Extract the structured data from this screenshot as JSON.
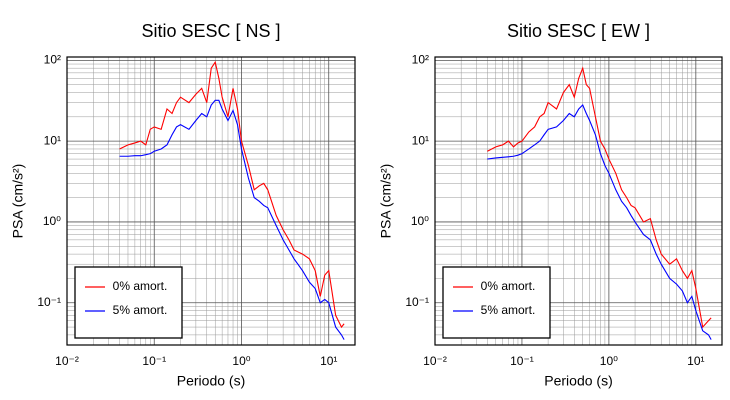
{
  "chart_data": [
    {
      "type": "line",
      "title": "Sitio SESC [ NS ]",
      "x_label": "Periodo (s)",
      "y_label": "PSA (cm/s²)",
      "xscale": "log",
      "yscale": "log",
      "grid": true,
      "legend": "lower left",
      "xlim": [
        0.01,
        20
      ],
      "ylim": [
        0.03,
        110
      ],
      "xticks": [
        {
          "value": 0.01,
          "label": "10⁻²"
        },
        {
          "value": 0.1,
          "label": "10⁻¹"
        },
        {
          "value": 1,
          "label": "10⁰"
        },
        {
          "value": 10,
          "label": "10¹"
        }
      ],
      "yticks": [
        {
          "value": 0.1,
          "label": "10⁻¹"
        },
        {
          "value": 1,
          "label": "10⁰"
        },
        {
          "value": 10,
          "label": "10¹"
        },
        {
          "value": 100,
          "label": "10²"
        }
      ],
      "x": [
        0.04,
        0.05,
        0.06,
        0.07,
        0.08,
        0.09,
        0.1,
        0.12,
        0.14,
        0.16,
        0.18,
        0.2,
        0.25,
        0.3,
        0.35,
        0.4,
        0.45,
        0.5,
        0.55,
        0.6,
        0.7,
        0.8,
        0.9,
        1.0,
        1.2,
        1.4,
        1.6,
        1.8,
        2.0,
        2.5,
        3.0,
        3.5,
        4.0,
        5.0,
        6.0,
        7.0,
        8.0,
        9.0,
        10,
        12,
        14,
        15
      ],
      "series": [
        {
          "name": "0% amort.",
          "color": "#ff0000",
          "values": [
            8,
            9,
            9.5,
            10,
            9,
            14,
            15,
            14,
            25,
            22,
            30,
            35,
            30,
            38,
            45,
            30,
            80,
            95,
            60,
            35,
            20,
            45,
            25,
            10,
            5,
            2.5,
            2.8,
            3,
            2.5,
            1.2,
            0.8,
            0.6,
            0.45,
            0.4,
            0.35,
            0.25,
            0.12,
            0.22,
            0.25,
            0.07,
            0.05,
            0.055
          ]
        },
        {
          "name": "5% amort.",
          "color": "#0000ff",
          "values": [
            6.5,
            6.5,
            6.6,
            6.6,
            6.8,
            7,
            7.5,
            8,
            9,
            12,
            15,
            16,
            14,
            18,
            22,
            20,
            28,
            32,
            32,
            25,
            18,
            24,
            16,
            8,
            3.5,
            2,
            1.8,
            1.6,
            1.5,
            0.9,
            0.6,
            0.45,
            0.35,
            0.25,
            0.18,
            0.15,
            0.1,
            0.11,
            0.1,
            0.05,
            0.04,
            0.035
          ]
        }
      ]
    },
    {
      "type": "line",
      "title": "Sitio SESC [ EW ]",
      "x_label": "Periodo (s)",
      "y_label": "PSA (cm/s²)",
      "xscale": "log",
      "yscale": "log",
      "grid": true,
      "legend": "lower left",
      "xlim": [
        0.01,
        20
      ],
      "ylim": [
        0.03,
        110
      ],
      "xticks": [
        {
          "value": 0.01,
          "label": "10⁻²"
        },
        {
          "value": 0.1,
          "label": "10⁻¹"
        },
        {
          "value": 1,
          "label": "10⁰"
        },
        {
          "value": 10,
          "label": "10¹"
        }
      ],
      "yticks": [
        {
          "value": 0.1,
          "label": "10⁻¹"
        },
        {
          "value": 1,
          "label": "10⁰"
        },
        {
          "value": 10,
          "label": "10¹"
        },
        {
          "value": 100,
          "label": "10²"
        }
      ],
      "x": [
        0.04,
        0.05,
        0.06,
        0.07,
        0.08,
        0.09,
        0.1,
        0.12,
        0.14,
        0.16,
        0.18,
        0.2,
        0.25,
        0.3,
        0.35,
        0.4,
        0.45,
        0.5,
        0.55,
        0.6,
        0.7,
        0.8,
        0.9,
        1.0,
        1.2,
        1.4,
        1.6,
        1.8,
        2.0,
        2.5,
        3.0,
        3.5,
        4.0,
        5.0,
        6.0,
        7.0,
        8.0,
        9.0,
        10,
        12,
        14,
        15
      ],
      "series": [
        {
          "name": "0% amort.",
          "color": "#ff0000",
          "values": [
            7.5,
            8.5,
            9,
            10,
            8.5,
            9.5,
            10,
            13,
            15,
            20,
            22,
            30,
            25,
            40,
            50,
            35,
            60,
            80,
            50,
            45,
            20,
            10,
            8,
            6,
            4,
            2.5,
            2,
            1.6,
            1.5,
            1,
            1.1,
            0.6,
            0.4,
            0.3,
            0.35,
            0.25,
            0.2,
            0.25,
            0.15,
            0.05,
            0.06,
            0.065
          ]
        },
        {
          "name": "5% amort.",
          "color": "#0000ff",
          "values": [
            6,
            6.2,
            6.3,
            6.4,
            6.5,
            6.7,
            7,
            8,
            9,
            10,
            12,
            14,
            15,
            18,
            22,
            20,
            25,
            28,
            22,
            18,
            12,
            7,
            5,
            4,
            2.5,
            1.8,
            1.5,
            1.2,
            1,
            0.7,
            0.6,
            0.4,
            0.3,
            0.2,
            0.17,
            0.14,
            0.1,
            0.12,
            0.08,
            0.045,
            0.04,
            0.035
          ]
        }
      ]
    }
  ]
}
